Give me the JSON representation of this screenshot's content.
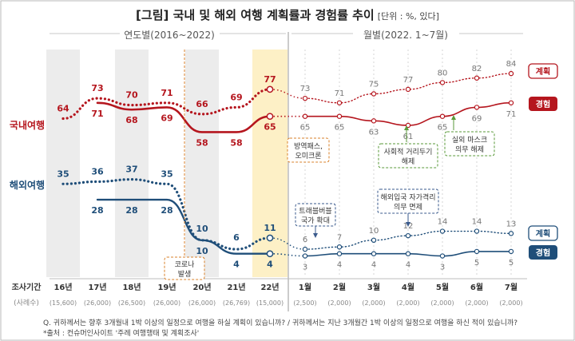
{
  "title": "[그림] 국내 및 해외 여행 계획률과 경험률 추이",
  "unit_note": "[단위 : %, 있다]",
  "period_yearly_label": "연도별(2016~2022)",
  "period_monthly_label": "월별(2022. 1~7월)",
  "row_label_period": "조사기간",
  "row_label_sample": "(사례수)",
  "categories": [
    "16년",
    "17년",
    "18년",
    "19년",
    "20년",
    "21년",
    "22년",
    "1월",
    "2월",
    "3월",
    "4월",
    "5월",
    "6월",
    "7월"
  ],
  "sample_sizes": [
    "(15,600)",
    "(26,000)",
    "(26,500)",
    "(26,000)",
    "(26,000)",
    "(26,769)",
    "(15,000)",
    "(2,500)",
    "(2,000)",
    "(2,000)",
    "(2,000)",
    "(2,000)",
    "(2,000)",
    "(2,000)"
  ],
  "group_labels": {
    "domestic": "국내여행",
    "overseas": "해외여행"
  },
  "legend": {
    "domestic_plan": "계획",
    "domestic_exp": "경험",
    "overseas_plan": "계획",
    "overseas_exp": "경험"
  },
  "colors": {
    "domestic": "#b5161e",
    "overseas": "#1f4e79",
    "highlight": "#fdf0c6",
    "yearly_band": "#ececec",
    "annotation_orange": "#d9822b",
    "annotation_green": "#5a9a3a",
    "annotation_navy": "#3a5a8c"
  },
  "annotations": [
    {
      "text": [
        "코로나",
        "발생"
      ]
    },
    {
      "text": [
        "방역패스,",
        "오미크론"
      ]
    },
    {
      "text": [
        "사회적 거리두기",
        "해제"
      ]
    },
    {
      "text": [
        "실외 마스크",
        "의무 해제"
      ]
    },
    {
      "text": [
        "트래블버블",
        "국가 확대"
      ]
    },
    {
      "text": [
        "해외입국 자가격리",
        "의무 면제"
      ]
    }
  ],
  "question_note": "Q. 귀하께서는 향후 3개월내 1박 이상의 일정으로 여행을 하실 계획이 있습니까? / 귀하께서는 지난 3개월간 1박 이상의 일정으로 여행을 하신 적이 있습니까?",
  "source_note": "*출처 : 컨슈머인사이트 '주례 여행행태 및 계획조사'",
  "chart_data": {
    "type": "line",
    "categories": [
      "16년",
      "17년",
      "18년",
      "19년",
      "20년",
      "21년",
      "22년",
      "1월",
      "2월",
      "3월",
      "4월",
      "5월",
      "6월",
      "7월"
    ],
    "ylim": [
      0,
      100
    ],
    "series": [
      {
        "name": "국내여행 계획",
        "style": "dotted",
        "values": [
          64,
          73,
          70,
          71,
          66,
          69,
          77,
          73,
          71,
          75,
          77,
          80,
          82,
          84
        ]
      },
      {
        "name": "국내여행 경험",
        "style": "solid",
        "values": [
          null,
          71,
          68,
          69,
          58,
          58,
          65,
          65,
          65,
          63,
          61,
          65,
          69,
          71
        ]
      },
      {
        "name": "해외여행 계획",
        "style": "dotted",
        "values": [
          35,
          36,
          37,
          35,
          10,
          6,
          11,
          6,
          7,
          10,
          12,
          14,
          14,
          13
        ]
      },
      {
        "name": "해외여행 경험",
        "style": "solid",
        "values": [
          null,
          28,
          28,
          28,
          10,
          4,
          4,
          3,
          4,
          4,
          4,
          3,
          5,
          5
        ]
      }
    ]
  }
}
